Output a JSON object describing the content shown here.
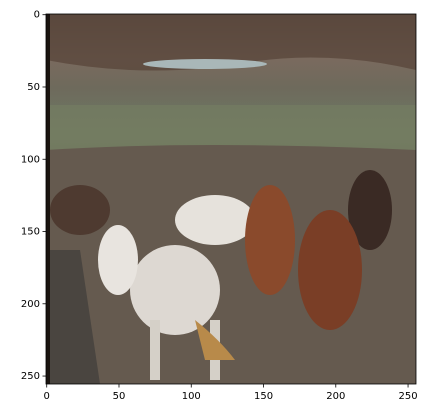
{
  "chart_data": {
    "type": "image",
    "xlim": [
      -0.5,
      255.5
    ],
    "ylim": [
      255.5,
      -0.5
    ],
    "xticks": [
      0,
      50,
      100,
      150,
      200,
      250
    ],
    "yticks": [
      0,
      50,
      100,
      150,
      200,
      250
    ]
  }
}
